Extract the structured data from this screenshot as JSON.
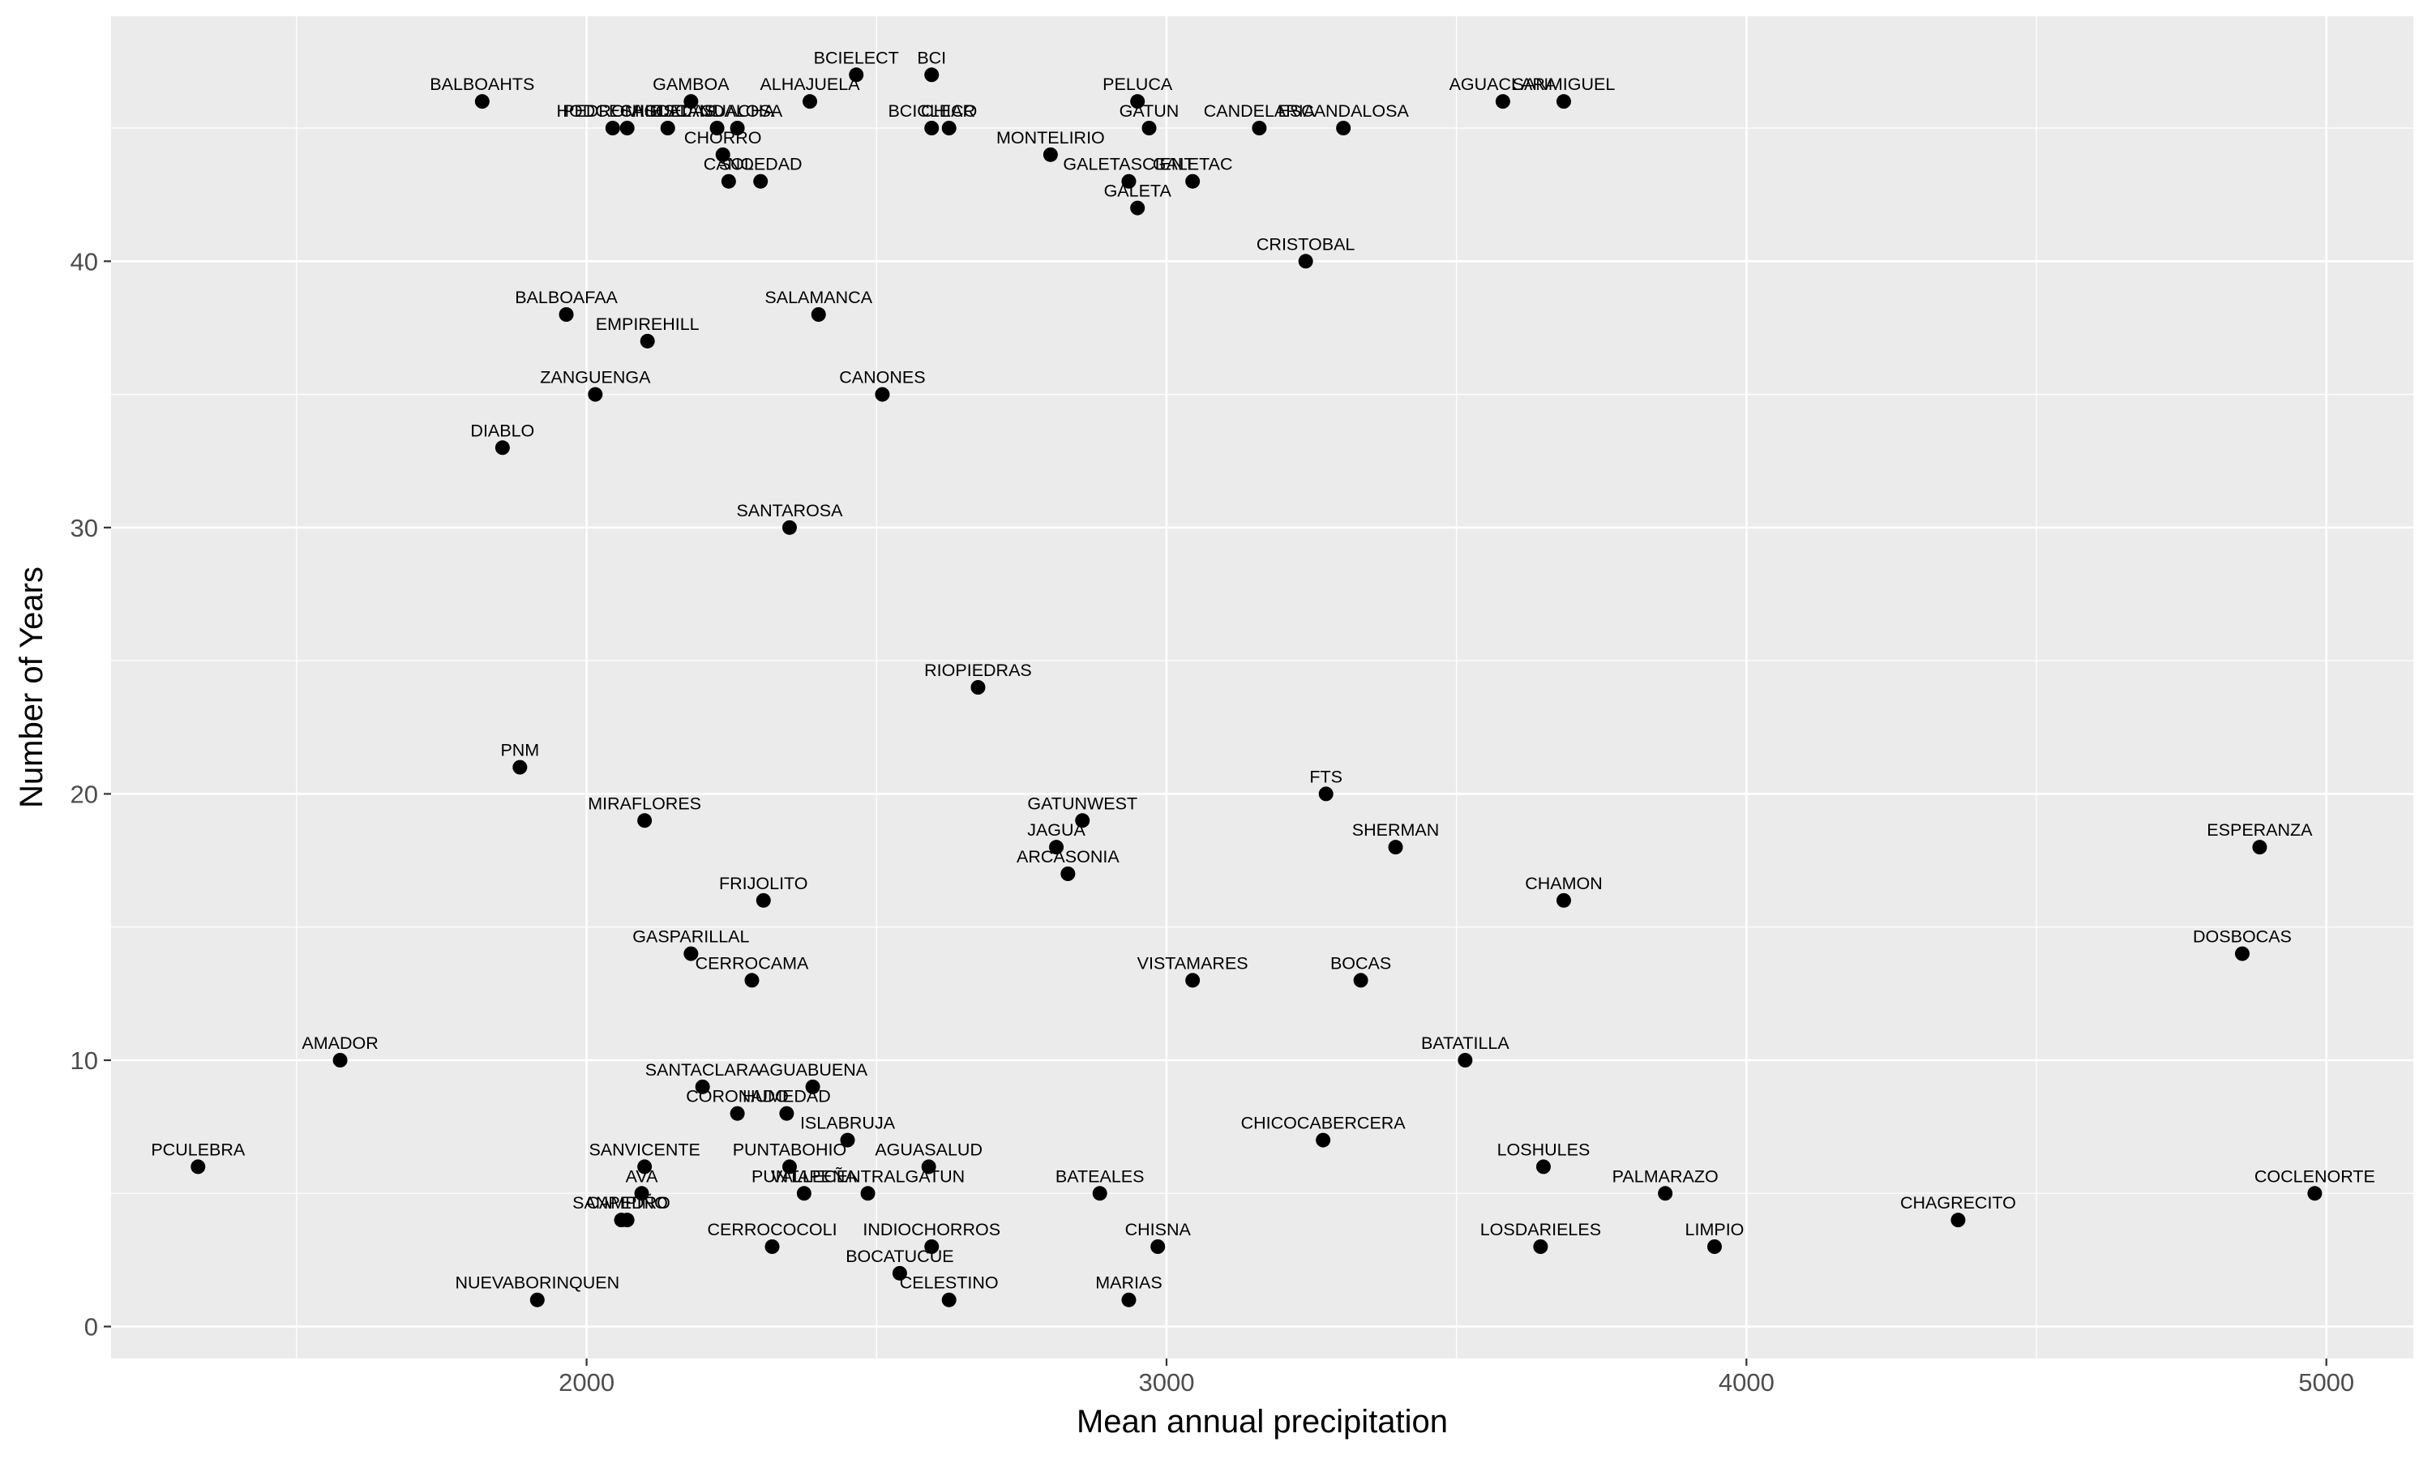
{
  "chart_data": {
    "type": "scatter",
    "xlabel": "Mean annual precipitation",
    "ylabel": "Number of Years",
    "xlim": [
      1180,
      5150
    ],
    "ylim": [
      -1.2,
      49.2
    ],
    "x_ticks": [
      2000,
      3000,
      4000,
      5000
    ],
    "y_ticks": [
      0,
      10,
      20,
      30,
      40
    ],
    "x_tick_labels": [
      "2000",
      "3000",
      "4000",
      "5000"
    ],
    "y_tick_labels": [
      "0",
      "10",
      "20",
      "30",
      "40"
    ],
    "grid": true,
    "points": [
      {
        "label": "BALBOAHTS",
        "x": 1820,
        "y": 46
      },
      {
        "label": "GAMBOA",
        "x": 2180,
        "y": 46
      },
      {
        "label": "ALHAJUELA",
        "x": 2385,
        "y": 46
      },
      {
        "label": "BCIELECT",
        "x": 2465,
        "y": 47
      },
      {
        "label": "BCI",
        "x": 2595,
        "y": 47
      },
      {
        "label": "PELUCA",
        "x": 2950,
        "y": 46
      },
      {
        "label": "AGUACLARA",
        "x": 3580,
        "y": 46
      },
      {
        "label": "SANMIGUEL",
        "x": 3685,
        "y": 46
      },
      {
        "label": "HODGESHILL",
        "x": 2045,
        "y": 45
      },
      {
        "label": "PEDROMIGUEL",
        "x": 2070,
        "y": 45
      },
      {
        "label": "CASCADAS",
        "x": 2140,
        "y": 45
      },
      {
        "label": "ESCANDALOSA",
        "x": 2225,
        "y": 45
      },
      {
        "label": "GUACHA",
        "x": 2260,
        "y": 45
      },
      {
        "label": "BCICLEAR",
        "x": 2595,
        "y": 45
      },
      {
        "label": "CHICO",
        "x": 2625,
        "y": 45
      },
      {
        "label": "GATUN",
        "x": 2970,
        "y": 45
      },
      {
        "label": "CANDELARIA",
        "x": 3160,
        "y": 45
      },
      {
        "label": "ESCANDALOSA",
        "x": 3305,
        "y": 45
      },
      {
        "label": "CHORRO",
        "x": 2235,
        "y": 44
      },
      {
        "label": "MONTELIRIO",
        "x": 2800,
        "y": 44
      },
      {
        "label": "CANO",
        "x": 2245,
        "y": 43
      },
      {
        "label": "SOLEDAD",
        "x": 2300,
        "y": 43
      },
      {
        "label": "GALETASCIENT",
        "x": 2935,
        "y": 43
      },
      {
        "label": "GALETAC",
        "x": 3045,
        "y": 43
      },
      {
        "label": "GALETA",
        "x": 2950,
        "y": 42
      },
      {
        "label": "CRISTOBAL",
        "x": 3240,
        "y": 40
      },
      {
        "label": "BALBOAFAA",
        "x": 1965,
        "y": 38
      },
      {
        "label": "SALAMANCA",
        "x": 2400,
        "y": 38
      },
      {
        "label": "EMPIREHILL",
        "x": 2105,
        "y": 37
      },
      {
        "label": "ZANGUENGA",
        "x": 2015,
        "y": 35
      },
      {
        "label": "CANONES",
        "x": 2510,
        "y": 35
      },
      {
        "label": "DIABLO",
        "x": 1855,
        "y": 33
      },
      {
        "label": "SANTAROSA",
        "x": 2350,
        "y": 30
      },
      {
        "label": "RIOPIEDRAS",
        "x": 2675,
        "y": 24
      },
      {
        "label": "PNM",
        "x": 1885,
        "y": 21
      },
      {
        "label": "FTS",
        "x": 3275,
        "y": 20
      },
      {
        "label": "MIRAFLORES",
        "x": 2100,
        "y": 19
      },
      {
        "label": "GATUNWEST",
        "x": 2855,
        "y": 19
      },
      {
        "label": "JAGUA",
        "x": 2810,
        "y": 18
      },
      {
        "label": "SHERMAN",
        "x": 3395,
        "y": 18
      },
      {
        "label": "ESPERANZA",
        "x": 4885,
        "y": 18
      },
      {
        "label": "ARCASONIA",
        "x": 2830,
        "y": 17
      },
      {
        "label": "FRIJOLITO",
        "x": 2305,
        "y": 16
      },
      {
        "label": "CHAMON",
        "x": 3685,
        "y": 16
      },
      {
        "label": "GASPARILLAL",
        "x": 2180,
        "y": 14
      },
      {
        "label": "DOSBOCAS",
        "x": 4855,
        "y": 14
      },
      {
        "label": "CERROCAMA",
        "x": 2285,
        "y": 13
      },
      {
        "label": "VISTAMARES",
        "x": 3045,
        "y": 13
      },
      {
        "label": "BOCAS",
        "x": 3335,
        "y": 13
      },
      {
        "label": "AMADOR",
        "x": 1575,
        "y": 10
      },
      {
        "label": "BATATILLA",
        "x": 3515,
        "y": 10
      },
      {
        "label": "SANTACLARA",
        "x": 2200,
        "y": 9
      },
      {
        "label": "AGUABUENA",
        "x": 2390,
        "y": 9
      },
      {
        "label": "CORONADO",
        "x": 2260,
        "y": 8
      },
      {
        "label": "HUMEDAD",
        "x": 2345,
        "y": 8
      },
      {
        "label": "CHICOCABERCERA",
        "x": 3270,
        "y": 7
      },
      {
        "label": "ISLABRUJA",
        "x": 2450,
        "y": 7
      },
      {
        "label": "PCULEBRA",
        "x": 1330,
        "y": 6
      },
      {
        "label": "SANVICENTE",
        "x": 2100,
        "y": 6
      },
      {
        "label": "PUNTABOHIO",
        "x": 2350,
        "y": 6
      },
      {
        "label": "AGUASALUD",
        "x": 2590,
        "y": 6
      },
      {
        "label": "LOSHULES",
        "x": 3650,
        "y": 6
      },
      {
        "label": "AVA",
        "x": 2095,
        "y": 5
      },
      {
        "label": "PUNTAPEÑA",
        "x": 2375,
        "y": 5
      },
      {
        "label": "VALLECENTRALGATUN",
        "x": 2485,
        "y": 5
      },
      {
        "label": "BATEALES",
        "x": 2885,
        "y": 5
      },
      {
        "label": "PALMARAZO",
        "x": 3860,
        "y": 5
      },
      {
        "label": "COCLENORTE",
        "x": 4980,
        "y": 5
      },
      {
        "label": "SANPEDRO",
        "x": 2060,
        "y": 4
      },
      {
        "label": "CAMPIÑO",
        "x": 2070,
        "y": 4
      },
      {
        "label": "CHAGRECITO",
        "x": 4365,
        "y": 4
      },
      {
        "label": "CERROCOCOLI",
        "x": 2320,
        "y": 3
      },
      {
        "label": "INDIOCHORROS",
        "x": 2595,
        "y": 3
      },
      {
        "label": "CHISNA",
        "x": 2985,
        "y": 3
      },
      {
        "label": "LOSDARIELES",
        "x": 3645,
        "y": 3
      },
      {
        "label": "LIMPIO",
        "x": 3945,
        "y": 3
      },
      {
        "label": "BOCATUCUE",
        "x": 2540,
        "y": 2
      },
      {
        "label": "NUEVABORINQUEN",
        "x": 1915,
        "y": 1
      },
      {
        "label": "CELESTINO",
        "x": 2625,
        "y": 1
      },
      {
        "label": "MARIAS",
        "x": 2935,
        "y": 1
      }
    ]
  }
}
